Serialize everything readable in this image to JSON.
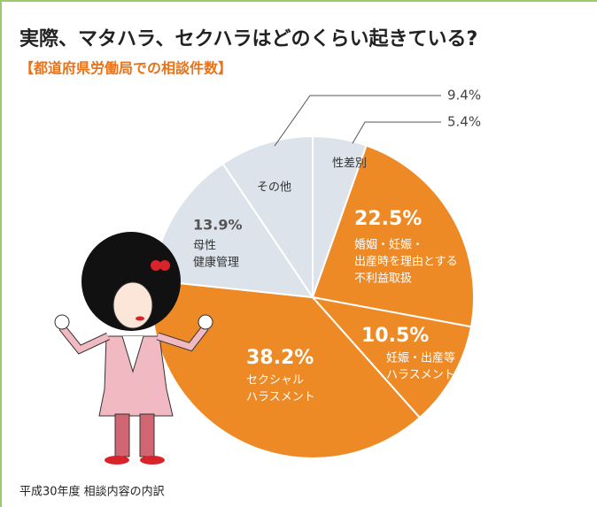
{
  "chart_data": {
    "type": "pie",
    "title": "実際、マタハラ、セクハラはどのくらい起きている?",
    "subtitle": "【都道府県労働局での相談件数】",
    "footnote": "平成30年度 相談内容の内訳",
    "categories": [
      [
        "性差別"
      ],
      [
        "婚姻・妊娠・",
        "出産時を理由とする",
        "不利益取扱"
      ],
      [
        "妊娠・出産等",
        "ハラスメント"
      ],
      [
        "セクシャル",
        "ハラスメント"
      ],
      [
        "母性",
        "健康管理"
      ],
      [
        "その他"
      ]
    ],
    "values": [
      5.4,
      22.5,
      10.5,
      38.2,
      13.9,
      9.4
    ],
    "value_labels": [
      "5.4%",
      "22.5%",
      "10.5%",
      "38.2%",
      "13.9%",
      "9.4%"
    ],
    "colors": [
      "#dde3ea",
      "#ee8a26",
      "#ee8a26",
      "#ee8a26",
      "#dde3ea",
      "#dde3ea"
    ]
  }
}
